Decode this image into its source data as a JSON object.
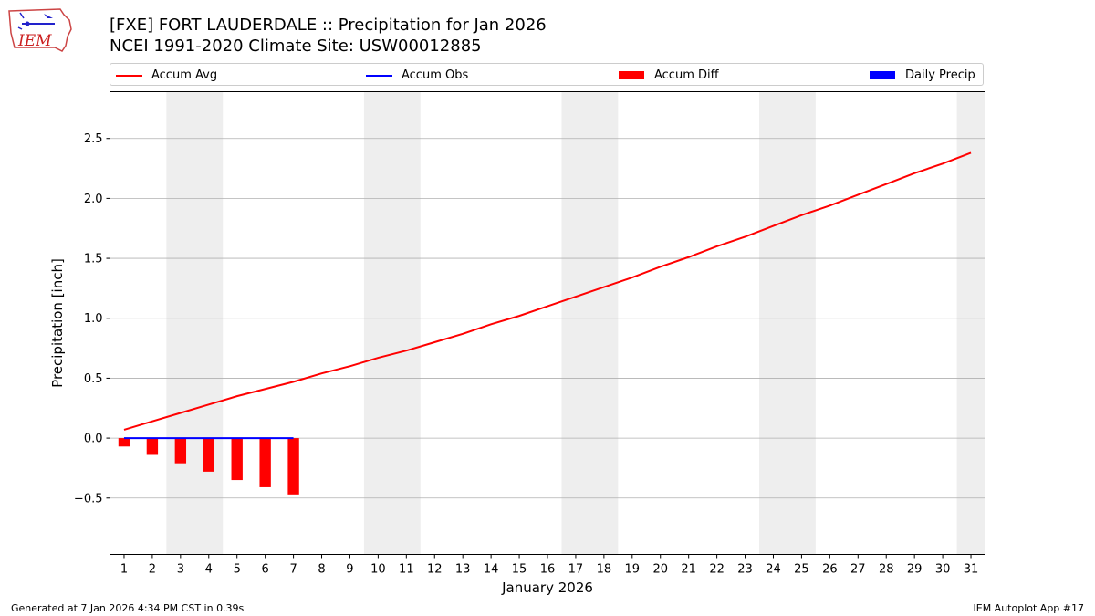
{
  "header": {
    "title_line1": "[FXE] FORT LAUDERDALE :: Precipitation for Jan 2026",
    "title_line2": "NCEI 1991-2020 Climate Site: USW00012885",
    "logo_text": "IEM"
  },
  "footer": {
    "generated": "Generated at 7 Jan 2026 4:34 PM CST in 0.39s",
    "app": "IEM Autoplot App #17"
  },
  "colors": {
    "avg": "#ff0000",
    "obs": "#0000ff",
    "diff": "#ff0000",
    "daily": "#0000ff",
    "weekend": "#eeeeee",
    "grid": "#b0b0b0"
  },
  "chart_data": {
    "type": "line",
    "title": "[FXE] FORT LAUDERDALE :: Precipitation for Jan 2026",
    "subtitle": "NCEI 1991-2020 Climate Site: USW00012885",
    "xlabel": "January 2026",
    "ylabel": "Precipitation [inch]",
    "xlim": [
      0.5,
      31.5
    ],
    "ylim": [
      -0.97,
      2.89
    ],
    "yticks": [
      -0.5,
      0.0,
      0.5,
      1.0,
      1.5,
      2.0,
      2.5
    ],
    "ytick_labels": [
      "−0.5",
      "0.0",
      "0.5",
      "1.0",
      "1.5",
      "2.0",
      "2.5"
    ],
    "xticks": [
      1,
      2,
      3,
      4,
      5,
      6,
      7,
      8,
      9,
      10,
      11,
      12,
      13,
      14,
      15,
      16,
      17,
      18,
      19,
      20,
      21,
      22,
      23,
      24,
      25,
      26,
      27,
      28,
      29,
      30,
      31
    ],
    "xtick_labels": [
      "1",
      "2",
      "3",
      "4",
      "5",
      "6",
      "7",
      "8",
      "9",
      "10",
      "11",
      "12",
      "13",
      "14",
      "15",
      "16",
      "17",
      "18",
      "19",
      "20",
      "21",
      "22",
      "23",
      "24",
      "25",
      "26",
      "27",
      "28",
      "29",
      "30",
      "31"
    ],
    "grid": "y",
    "legend": {
      "placement": "top",
      "entries": [
        "Accum Avg",
        "Accum Obs",
        "Accum Diff",
        "Daily Precip"
      ]
    },
    "weekend_spans": [
      [
        2.5,
        4.5
      ],
      [
        9.5,
        11.5
      ],
      [
        16.5,
        18.5
      ],
      [
        23.5,
        25.5
      ],
      [
        30.5,
        31.5
      ]
    ],
    "series": [
      {
        "name": "Accum Avg",
        "kind": "line",
        "x": [
          1,
          2,
          3,
          4,
          5,
          6,
          7,
          8,
          9,
          10,
          11,
          12,
          13,
          14,
          15,
          16,
          17,
          18,
          19,
          20,
          21,
          22,
          23,
          24,
          25,
          26,
          27,
          28,
          29,
          30,
          31
        ],
        "values": [
          0.07,
          0.14,
          0.21,
          0.28,
          0.35,
          0.41,
          0.47,
          0.54,
          0.6,
          0.67,
          0.73,
          0.8,
          0.87,
          0.95,
          1.02,
          1.1,
          1.18,
          1.26,
          1.34,
          1.43,
          1.51,
          1.6,
          1.68,
          1.77,
          1.86,
          1.94,
          2.03,
          2.12,
          2.21,
          2.29,
          2.38
        ]
      },
      {
        "name": "Accum Obs",
        "kind": "line",
        "x": [
          1,
          2,
          3,
          4,
          5,
          6,
          7
        ],
        "values": [
          0,
          0,
          0,
          0,
          0,
          0,
          0
        ]
      },
      {
        "name": "Accum Diff",
        "kind": "bar",
        "x": [
          1,
          2,
          3,
          4,
          5,
          6,
          7
        ],
        "values": [
          -0.07,
          -0.14,
          -0.21,
          -0.28,
          -0.35,
          -0.41,
          -0.47
        ]
      },
      {
        "name": "Daily Precip",
        "kind": "bar",
        "x": [
          1,
          2,
          3,
          4,
          5,
          6,
          7
        ],
        "values": [
          0,
          0,
          0,
          0,
          0,
          0,
          0
        ]
      }
    ]
  }
}
